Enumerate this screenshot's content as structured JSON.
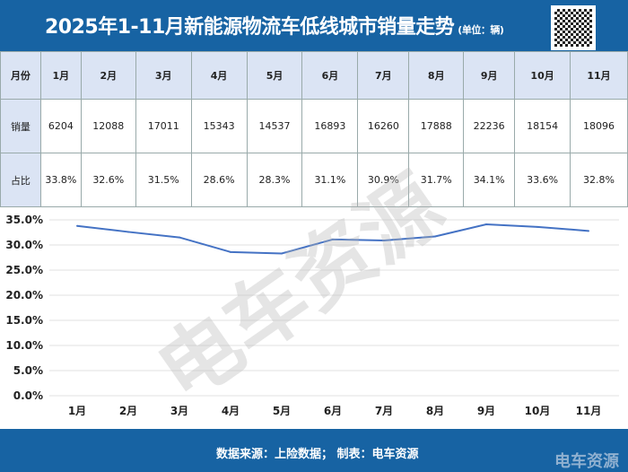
{
  "title": "2025年1-11月新能源物流车低线城市销量走势",
  "unit": "(单位：辆)",
  "table": {
    "row_labels": [
      "月份",
      "销量",
      "占比"
    ],
    "months": [
      "1月",
      "2月",
      "3月",
      "4月",
      "5月",
      "6月",
      "7月",
      "8月",
      "9月",
      "10月",
      "11月"
    ],
    "sales": [
      "6204",
      "12088",
      "17011",
      "15343",
      "14537",
      "16893",
      "16260",
      "17888",
      "22236",
      "18154",
      "18096"
    ],
    "share": [
      "33.8%",
      "32.6%",
      "31.5%",
      "28.6%",
      "28.3%",
      "31.1%",
      "30.9%",
      "31.7%",
      "34.1%",
      "33.6%",
      "32.8%"
    ]
  },
  "chart_data": {
    "type": "line",
    "categories": [
      "1月",
      "2月",
      "3月",
      "4月",
      "5月",
      "6月",
      "7月",
      "8月",
      "9月",
      "10月",
      "11月"
    ],
    "series": [
      {
        "name": "占比",
        "values": [
          33.8,
          32.6,
          31.5,
          28.6,
          28.3,
          31.1,
          30.9,
          31.7,
          34.1,
          33.6,
          32.8
        ],
        "color": "#4472c4"
      }
    ],
    "ylim": [
      0,
      35
    ],
    "yticks": [
      "0.0%",
      "5.0%",
      "10.0%",
      "15.0%",
      "20.0%",
      "25.0%",
      "30.0%",
      "35.0%"
    ],
    "grid": true
  },
  "footer": {
    "source": "数据来源：上险数据；  制表：电车资源",
    "logo": "电车资源"
  },
  "watermark": "电车资源"
}
